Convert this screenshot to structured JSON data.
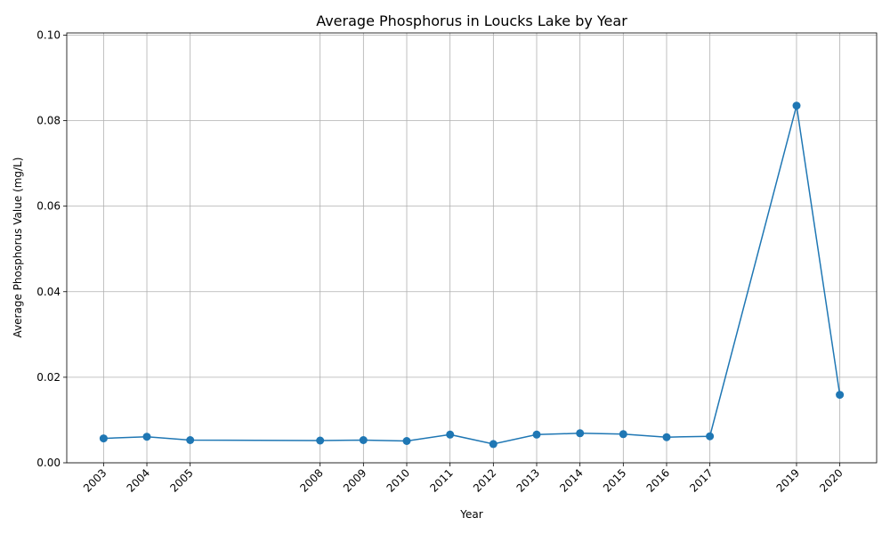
{
  "chart_data": {
    "type": "line",
    "title": "Average Phosphorus in Loucks Lake by Year",
    "xlabel": "Year",
    "ylabel": "Average Phosphorus Value (mg/L)",
    "x": [
      2003,
      2004,
      2005,
      2008,
      2009,
      2010,
      2011,
      2012,
      2013,
      2014,
      2015,
      2016,
      2017,
      2019,
      2020
    ],
    "y": [
      0.0057,
      0.0061,
      0.0053,
      0.0052,
      0.0053,
      0.0051,
      0.0066,
      0.0044,
      0.0066,
      0.0069,
      0.0067,
      0.006,
      0.0062,
      0.0835,
      0.0159
    ],
    "x_tick_labels": [
      "2003",
      "2004",
      "2005",
      "2008",
      "2009",
      "2010",
      "2011",
      "2012",
      "2013",
      "2014",
      "2015",
      "2016",
      "2017",
      "2019",
      "2020"
    ],
    "y_ticks": [
      0.0,
      0.02,
      0.04,
      0.06,
      0.08,
      0.1
    ],
    "y_tick_labels": [
      "0.00",
      "0.02",
      "0.04",
      "0.06",
      "0.08",
      "0.10"
    ],
    "xlim": [
      2002.15,
      2020.85
    ],
    "ylim": [
      0,
      0.1005
    ],
    "grid": true,
    "series_color": "#1f77b4"
  }
}
